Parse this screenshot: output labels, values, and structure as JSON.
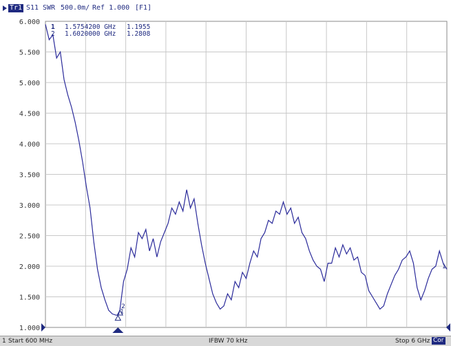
{
  "header": {
    "trace_id": "Tr1",
    "measurement": "S11",
    "format": "SWR",
    "scale": "500.0m/",
    "ref": "Ref 1.000",
    "channel": "[F1]"
  },
  "markers": [
    {
      "id": "1",
      "row_label": "1",
      "freq": "1.5754200 GHz",
      "value": "1.1955"
    },
    {
      "id": "2",
      "row_label": "2",
      "freq": "1.6020000 GHz",
      "value": "1.2808"
    }
  ],
  "footer": {
    "channel": "1",
    "start": "Start 600 MHz",
    "ifbw": "IFBW 70 kHz",
    "stop": "Stop 6 GHz",
    "cor": "Cor"
  },
  "colors": {
    "trace": "#2a2a9a",
    "grid": "#c8c8c8",
    "text": "#1f2a80"
  },
  "chart_data": {
    "type": "line",
    "xlabel": "",
    "ylabel": "",
    "xlim": [
      0.6,
      6.0
    ],
    "ylim": [
      1.0,
      6.0
    ],
    "x_divisions": 10,
    "yticks": [
      "1.000",
      "1.500",
      "2.000",
      "2.500",
      "3.000",
      "3.500",
      "4.000",
      "4.500",
      "5.000",
      "5.500",
      "6.000"
    ],
    "grid": true,
    "series": [
      {
        "x": [
          0.6,
          0.65,
          0.7,
          0.75,
          0.8,
          0.85,
          0.9,
          0.95,
          1.0,
          1.05,
          1.1,
          1.15,
          1.2,
          1.25,
          1.3,
          1.35,
          1.4,
          1.45,
          1.5,
          1.55,
          1.58,
          1.6,
          1.65,
          1.7,
          1.75,
          1.8,
          1.85,
          1.9,
          1.95,
          2.0,
          2.05,
          2.1,
          2.15,
          2.2,
          2.25,
          2.3,
          2.35,
          2.4,
          2.45,
          2.5,
          2.55,
          2.6,
          2.65,
          2.7,
          2.75,
          2.8,
          2.85,
          2.9,
          2.95,
          3.0,
          3.05,
          3.1,
          3.15,
          3.2,
          3.25,
          3.3,
          3.35,
          3.4,
          3.45,
          3.5,
          3.55,
          3.6,
          3.65,
          3.7,
          3.75,
          3.8,
          3.85,
          3.9,
          3.95,
          4.0,
          4.05,
          4.1,
          4.15,
          4.2,
          4.25,
          4.3,
          4.35,
          4.4,
          4.45,
          4.5,
          4.55,
          4.6,
          4.65,
          4.7,
          4.75,
          4.8,
          4.85,
          4.9,
          4.95,
          5.0,
          5.05,
          5.1,
          5.15,
          5.2,
          5.25,
          5.3,
          5.35,
          5.4,
          5.45,
          5.5,
          5.55,
          5.6,
          5.65,
          5.7,
          5.75,
          5.8,
          5.85,
          5.9,
          5.95,
          6.0
        ],
        "values": [
          5.95,
          5.7,
          5.78,
          5.4,
          5.5,
          5.05,
          4.8,
          4.6,
          4.35,
          4.05,
          3.7,
          3.3,
          2.95,
          2.4,
          1.95,
          1.65,
          1.45,
          1.28,
          1.22,
          1.2,
          1.2,
          1.28,
          1.75,
          1.95,
          2.3,
          2.15,
          2.55,
          2.45,
          2.6,
          2.25,
          2.45,
          2.15,
          2.4,
          2.55,
          2.7,
          2.95,
          2.85,
          3.05,
          2.9,
          3.25,
          2.95,
          3.1,
          2.7,
          2.35,
          2.05,
          1.8,
          1.55,
          1.4,
          1.3,
          1.35,
          1.55,
          1.45,
          1.75,
          1.65,
          1.9,
          1.8,
          2.05,
          2.25,
          2.15,
          2.45,
          2.55,
          2.75,
          2.7,
          2.9,
          2.85,
          3.05,
          2.85,
          2.95,
          2.7,
          2.8,
          2.55,
          2.45,
          2.25,
          2.1,
          2.0,
          1.95,
          1.75,
          2.05,
          2.05,
          2.3,
          2.15,
          2.35,
          2.2,
          2.3,
          2.1,
          2.15,
          1.9,
          1.85,
          1.6,
          1.5,
          1.4,
          1.3,
          1.35,
          1.55,
          1.7,
          1.85,
          1.95,
          2.1,
          2.15,
          2.25,
          2.05,
          1.65,
          1.45,
          1.6,
          1.8,
          1.95,
          2.0,
          2.25,
          2.05,
          1.95
        ]
      }
    ],
    "marker_points": [
      {
        "id": "1",
        "x": 1.57542,
        "y": 1.1955
      },
      {
        "id": "2",
        "x": 1.602,
        "y": 1.2808
      }
    ]
  }
}
